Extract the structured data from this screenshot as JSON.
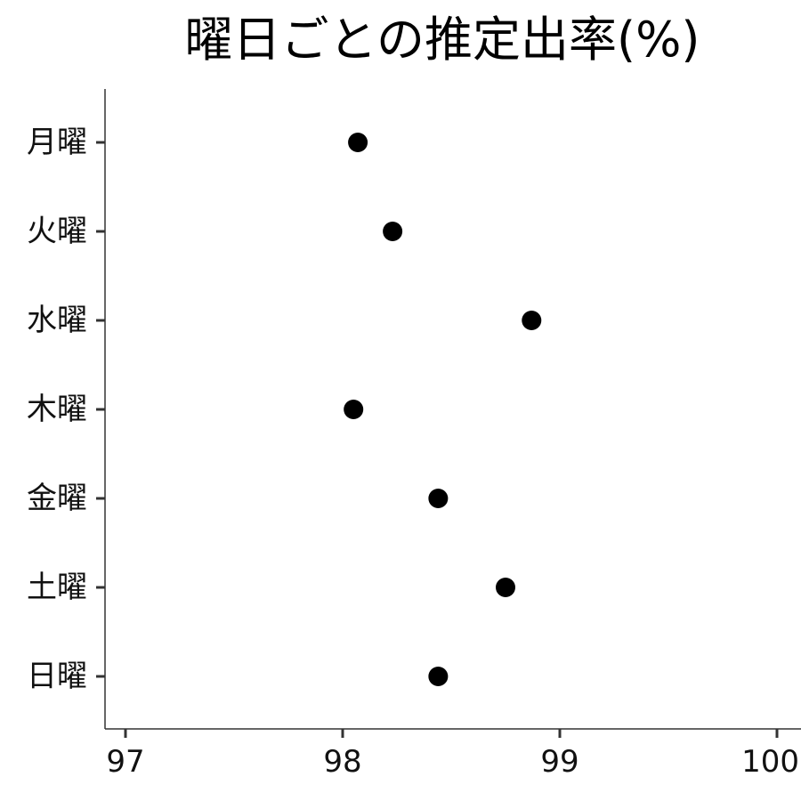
{
  "chart_data": {
    "type": "scatter",
    "title": "曜日ごとの推定出率(%)",
    "xlabel": "",
    "ylabel": "",
    "xlim": [
      96.9,
      100.0
    ],
    "x_ticks": [
      97,
      98,
      99,
      100
    ],
    "x_tick_labels": [
      "97",
      "98",
      "99",
      "100"
    ],
    "categories": [
      "月曜",
      "火曜",
      "水曜",
      "木曜",
      "金曜",
      "土曜",
      "日曜"
    ],
    "values": [
      98.07,
      98.23,
      98.87,
      98.05,
      98.44,
      98.75,
      98.44
    ],
    "grid": false,
    "legend": "none",
    "point_color": "#000000",
    "axis_color": "#333333"
  }
}
